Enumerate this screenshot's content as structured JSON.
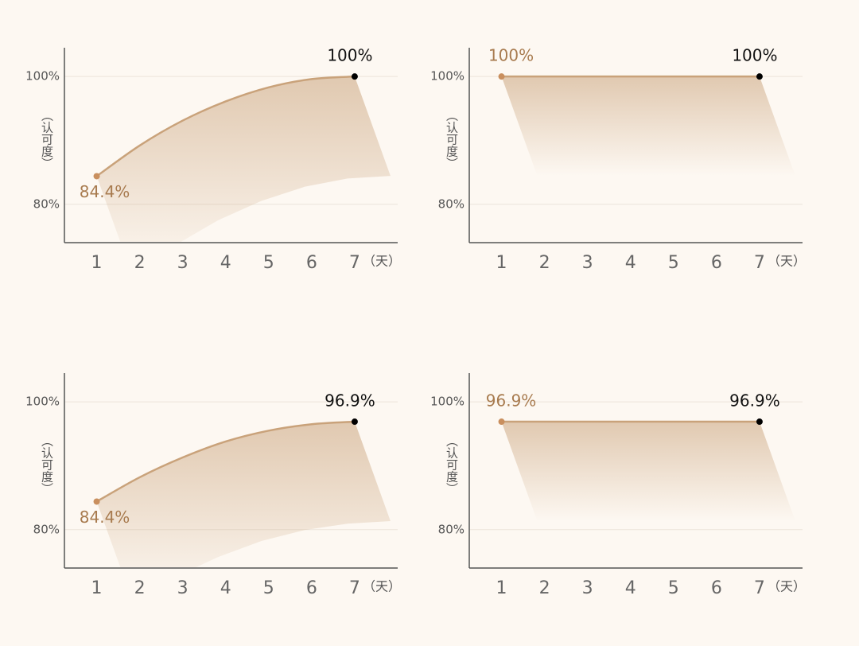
{
  "chart_data": [
    {
      "type": "line",
      "x": [
        1,
        2,
        3,
        4,
        5,
        6,
        7
      ],
      "xlabel": "（天）",
      "ylabel": "（认可度）",
      "xlim": [
        0.25,
        8
      ],
      "ylim": [
        74,
        104.5
      ],
      "yticks": [
        {
          "value": 80,
          "label": "80%"
        },
        {
          "value": 100,
          "label": "100%"
        }
      ],
      "series": [
        {
          "color": "#c9a27a",
          "values": [
            84.4,
            89.2,
            93.1,
            96.1,
            98.3,
            99.6,
            100
          ],
          "value_labels": [
            "84.4%",
            null,
            null,
            null,
            null,
            null,
            "100%"
          ]
        }
      ]
    },
    {
      "type": "line",
      "x": [
        1,
        2,
        3,
        4,
        5,
        6,
        7
      ],
      "xlabel": "（天）",
      "ylabel": "（认可度）",
      "xlim": [
        0.25,
        8
      ],
      "ylim": [
        74,
        104.5
      ],
      "yticks": [
        {
          "value": 80,
          "label": "80%"
        },
        {
          "value": 100,
          "label": "100%"
        }
      ],
      "series": [
        {
          "color": "#c9a27a",
          "values": [
            100,
            100,
            100,
            100,
            100,
            100,
            100
          ],
          "value_labels": [
            "100%",
            null,
            null,
            null,
            null,
            null,
            "100%"
          ]
        }
      ]
    },
    {
      "type": "line",
      "x": [
        1,
        2,
        3,
        4,
        5,
        6,
        7
      ],
      "xlabel": "（天）",
      "ylabel": "（认可度）",
      "xlim": [
        0.25,
        8
      ],
      "ylim": [
        74,
        104.5
      ],
      "yticks": [
        {
          "value": 80,
          "label": "80%"
        },
        {
          "value": 100,
          "label": "100%"
        }
      ],
      "series": [
        {
          "color": "#c9a27a",
          "values": [
            84.4,
            88.2,
            91.3,
            93.8,
            95.5,
            96.5,
            96.9
          ],
          "value_labels": [
            "84.4%",
            null,
            null,
            null,
            null,
            null,
            "96.9%"
          ]
        }
      ]
    },
    {
      "type": "line",
      "x": [
        1,
        2,
        3,
        4,
        5,
        6,
        7
      ],
      "xlabel": "（天）",
      "ylabel": "（认可度）",
      "xlim": [
        0.25,
        8
      ],
      "ylim": [
        74,
        104.5
      ],
      "yticks": [
        {
          "value": 80,
          "label": "80%"
        },
        {
          "value": 100,
          "label": "100%"
        }
      ],
      "series": [
        {
          "color": "#c9a27a",
          "values": [
            96.9,
            96.9,
            96.9,
            96.9,
            96.9,
            96.9,
            96.9
          ],
          "value_labels": [
            "96.9%",
            null,
            null,
            null,
            null,
            null,
            "96.9%"
          ]
        }
      ]
    }
  ]
}
